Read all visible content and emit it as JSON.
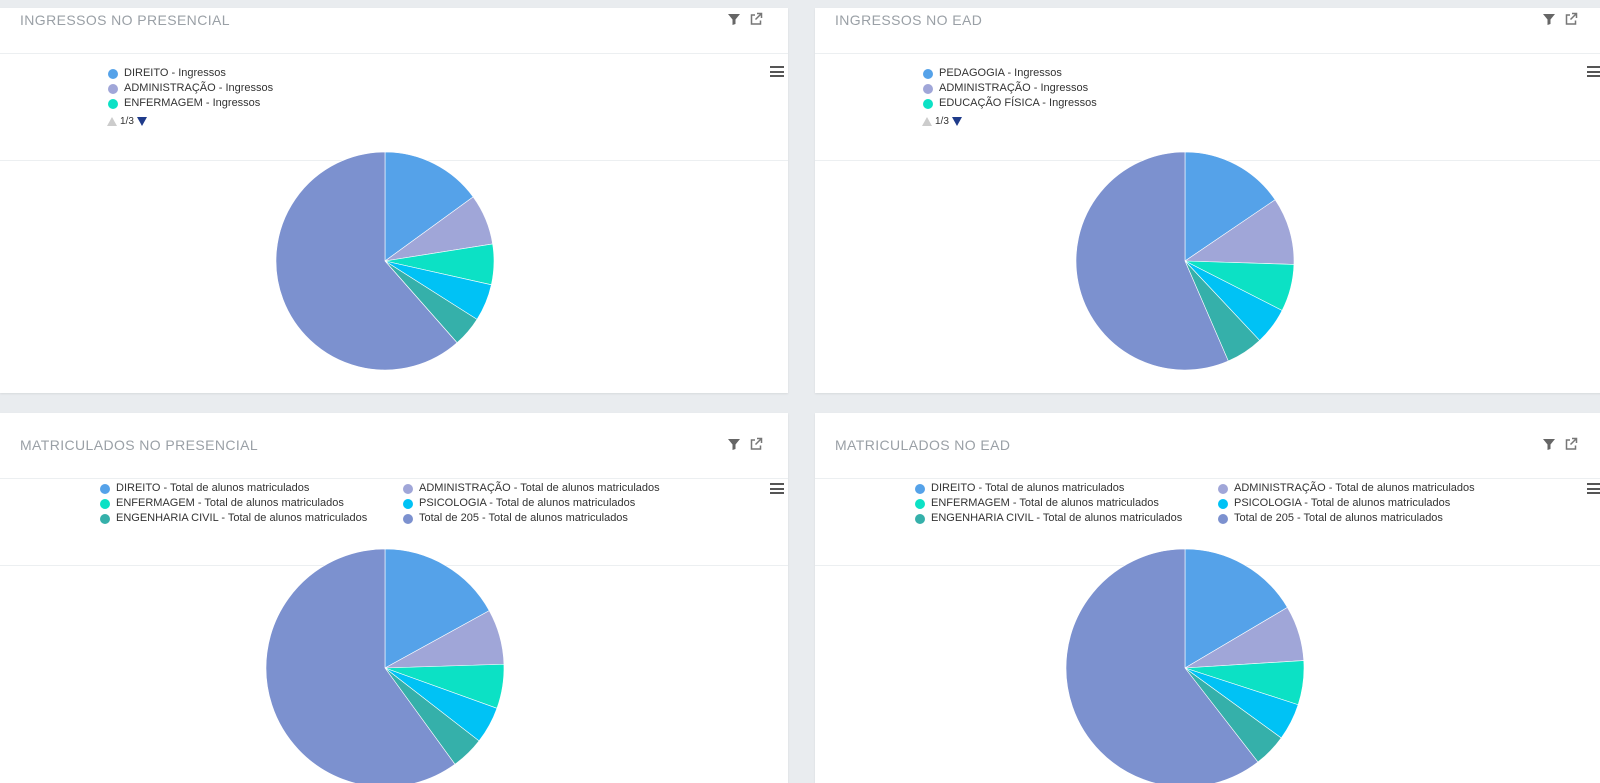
{
  "colors": [
    "#55a2e9",
    "#a0a6d8",
    "#0ce1c5",
    "#00c2f5",
    "#35b0aa",
    "#7c91cf"
  ],
  "panels": [
    {
      "title": "INGRESSOS NO PRESENCIAL",
      "legend": [
        {
          "label": "DIREITO - Ingressos",
          "color": "#55a2e9"
        },
        {
          "label": "ADMINISTRAÇÃO - Ingressos",
          "color": "#a0a6d8"
        },
        {
          "label": "ENFERMAGEM - Ingressos",
          "color": "#0ce1c5"
        }
      ],
      "pager": "1/3"
    },
    {
      "title": "INGRESSOS NO EAD",
      "legend": [
        {
          "label": "PEDAGOGIA - Ingressos",
          "color": "#55a2e9"
        },
        {
          "label": "ADMINISTRAÇÃO - Ingressos",
          "color": "#a0a6d8"
        },
        {
          "label": "EDUCAÇÃO FÍSICA - Ingressos",
          "color": "#0ce1c5"
        }
      ],
      "pager": "1/3"
    },
    {
      "title": "MATRICULADOS NO PRESENCIAL",
      "legend": [
        {
          "label": "DIREITO - Total de alunos matriculados",
          "color": "#55a2e9"
        },
        {
          "label": "ADMINISTRAÇÃO - Total de alunos matriculados",
          "color": "#a0a6d8"
        },
        {
          "label": "ENFERMAGEM - Total de alunos matriculados",
          "color": "#0ce1c5"
        },
        {
          "label": "PSICOLOGIA - Total de alunos matriculados",
          "color": "#00c2f5"
        },
        {
          "label": "ENGENHARIA CIVIL - Total de alunos matriculados",
          "color": "#35b0aa"
        },
        {
          "label": "Total de 205 - Total de alunos matriculados",
          "color": "#7c91cf"
        }
      ]
    },
    {
      "title": "MATRICULADOS NO EAD",
      "legend": [
        {
          "label": "DIREITO - Total de alunos matriculados",
          "color": "#55a2e9"
        },
        {
          "label": "ADMINISTRAÇÃO - Total de alunos matriculados",
          "color": "#a0a6d8"
        },
        {
          "label": "ENFERMAGEM - Total de alunos matriculados",
          "color": "#0ce1c5"
        },
        {
          "label": "PSICOLOGIA - Total de alunos matriculados",
          "color": "#00c2f5"
        },
        {
          "label": "ENGENHARIA CIVIL - Total de alunos matriculados",
          "color": "#35b0aa"
        },
        {
          "label": "Total de 205 - Total de alunos matriculados",
          "color": "#7c91cf"
        }
      ]
    }
  ],
  "chart_data": [
    {
      "type": "pie",
      "title": "INGRESSOS NO PRESENCIAL",
      "legend_position": "top-left",
      "slices": [
        {
          "value": 15.0,
          "color": "#55a2e9"
        },
        {
          "value": 7.5,
          "color": "#a0a6d8"
        },
        {
          "value": 6.0,
          "color": "#0ce1c5"
        },
        {
          "value": 5.5,
          "color": "#00c2f5"
        },
        {
          "value": 4.5,
          "color": "#35b0aa"
        },
        {
          "value": 61.5,
          "color": "#7c91cf"
        }
      ]
    },
    {
      "type": "pie",
      "title": "INGRESSOS NO EAD",
      "legend_position": "top-left",
      "slices": [
        {
          "value": 15.5,
          "color": "#55a2e9"
        },
        {
          "value": 10.0,
          "color": "#a0a6d8"
        },
        {
          "value": 7.0,
          "color": "#0ce1c5"
        },
        {
          "value": 5.5,
          "color": "#00c2f5"
        },
        {
          "value": 5.5,
          "color": "#35b0aa"
        },
        {
          "value": 56.5,
          "color": "#7c91cf"
        }
      ]
    },
    {
      "type": "pie",
      "title": "MATRICULADOS NO PRESENCIAL",
      "legend_position": "top-left",
      "slices": [
        {
          "label": "DIREITO - Total de alunos matriculados",
          "value": 17.0,
          "color": "#55a2e9"
        },
        {
          "label": "ADMINISTRAÇÃO - Total de alunos matriculados",
          "value": 7.5,
          "color": "#a0a6d8"
        },
        {
          "label": "ENFERMAGEM - Total de alunos matriculados",
          "value": 6.0,
          "color": "#0ce1c5"
        },
        {
          "label": "PSICOLOGIA - Total de alunos matriculados",
          "value": 5.0,
          "color": "#00c2f5"
        },
        {
          "label": "ENGENHARIA CIVIL - Total de alunos matriculados",
          "value": 4.5,
          "color": "#35b0aa"
        },
        {
          "label": "Total de 205 - Total de alunos matriculados",
          "value": 60.0,
          "color": "#7c91cf"
        }
      ]
    },
    {
      "type": "pie",
      "title": "MATRICULADOS NO EAD",
      "legend_position": "top-left",
      "slices": [
        {
          "label": "DIREITO - Total de alunos matriculados",
          "value": 16.5,
          "color": "#55a2e9"
        },
        {
          "label": "ADMINISTRAÇÃO - Total de alunos matriculados",
          "value": 7.5,
          "color": "#a0a6d8"
        },
        {
          "label": "ENFERMAGEM - Total de alunos matriculados",
          "value": 6.0,
          "color": "#0ce1c5"
        },
        {
          "label": "PSICOLOGIA - Total de alunos matriculados",
          "value": 5.0,
          "color": "#00c2f5"
        },
        {
          "label": "ENGENHARIA CIVIL - Total de alunos matriculados",
          "value": 4.5,
          "color": "#35b0aa"
        },
        {
          "label": "Total de 205 - Total de alunos matriculados",
          "value": 60.5,
          "color": "#7c91cf"
        }
      ]
    }
  ]
}
